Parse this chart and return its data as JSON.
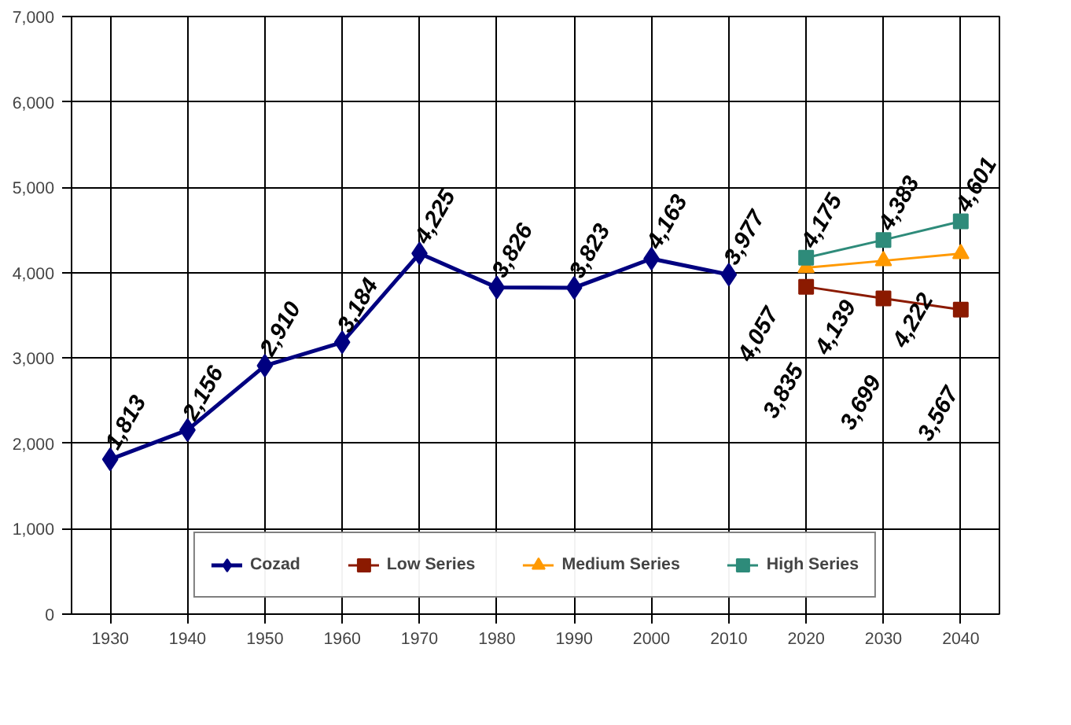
{
  "chart_data": {
    "type": "line",
    "ylim": [
      0,
      7000
    ],
    "yticks": [
      {
        "value": 0,
        "label": "0"
      },
      {
        "value": 1000,
        "label": "1,000"
      },
      {
        "value": 2000,
        "label": "2,000"
      },
      {
        "value": 3000,
        "label": "3,000"
      },
      {
        "value": 4000,
        "label": "4,000"
      },
      {
        "value": 5000,
        "label": "5,000"
      },
      {
        "value": 6000,
        "label": "6,000"
      },
      {
        "value": 7000,
        "label": "7,000"
      }
    ],
    "xlim": [
      1925,
      2045
    ],
    "xticks": [
      1930,
      1940,
      1950,
      1960,
      1970,
      1980,
      1990,
      2000,
      2010,
      2020,
      2030,
      2040
    ],
    "grid": true,
    "legend": "bottom",
    "line_style": "solid",
    "series": [
      {
        "name": "Cozad",
        "color": "#000080",
        "marker": "diamond",
        "x": [
          1930,
          1940,
          1950,
          1960,
          1970,
          1980,
          1990,
          2000,
          2010
        ],
        "values": [
          1813,
          2156,
          2910,
          3184,
          4225,
          3826,
          3823,
          4163,
          3977
        ],
        "value_labels": [
          "1,813",
          "2,156",
          "2,910",
          "3,184",
          "4,225",
          "3,826",
          "3,823",
          "4,163",
          "3,977"
        ]
      },
      {
        "name": "Low Series",
        "color": "#8b1a00",
        "marker": "square",
        "x": [
          2020,
          2030,
          2040
        ],
        "values": [
          3835,
          3699,
          3567
        ],
        "value_labels": [
          "3,835",
          "3,699",
          "3,567"
        ]
      },
      {
        "name": "Medium Series",
        "color": "#ff9900",
        "marker": "triangle",
        "x": [
          2020,
          2030,
          2040
        ],
        "values": [
          4057,
          4139,
          4222
        ],
        "value_labels": [
          "4,057",
          "4,139",
          "4,222"
        ]
      },
      {
        "name": "High Series",
        "color": "#2e8b7a",
        "marker": "square",
        "x": [
          2020,
          2030,
          2040
        ],
        "values": [
          4175,
          4383,
          4601
        ],
        "value_labels": [
          "4,175",
          "4,383",
          "4,601"
        ]
      }
    ]
  }
}
